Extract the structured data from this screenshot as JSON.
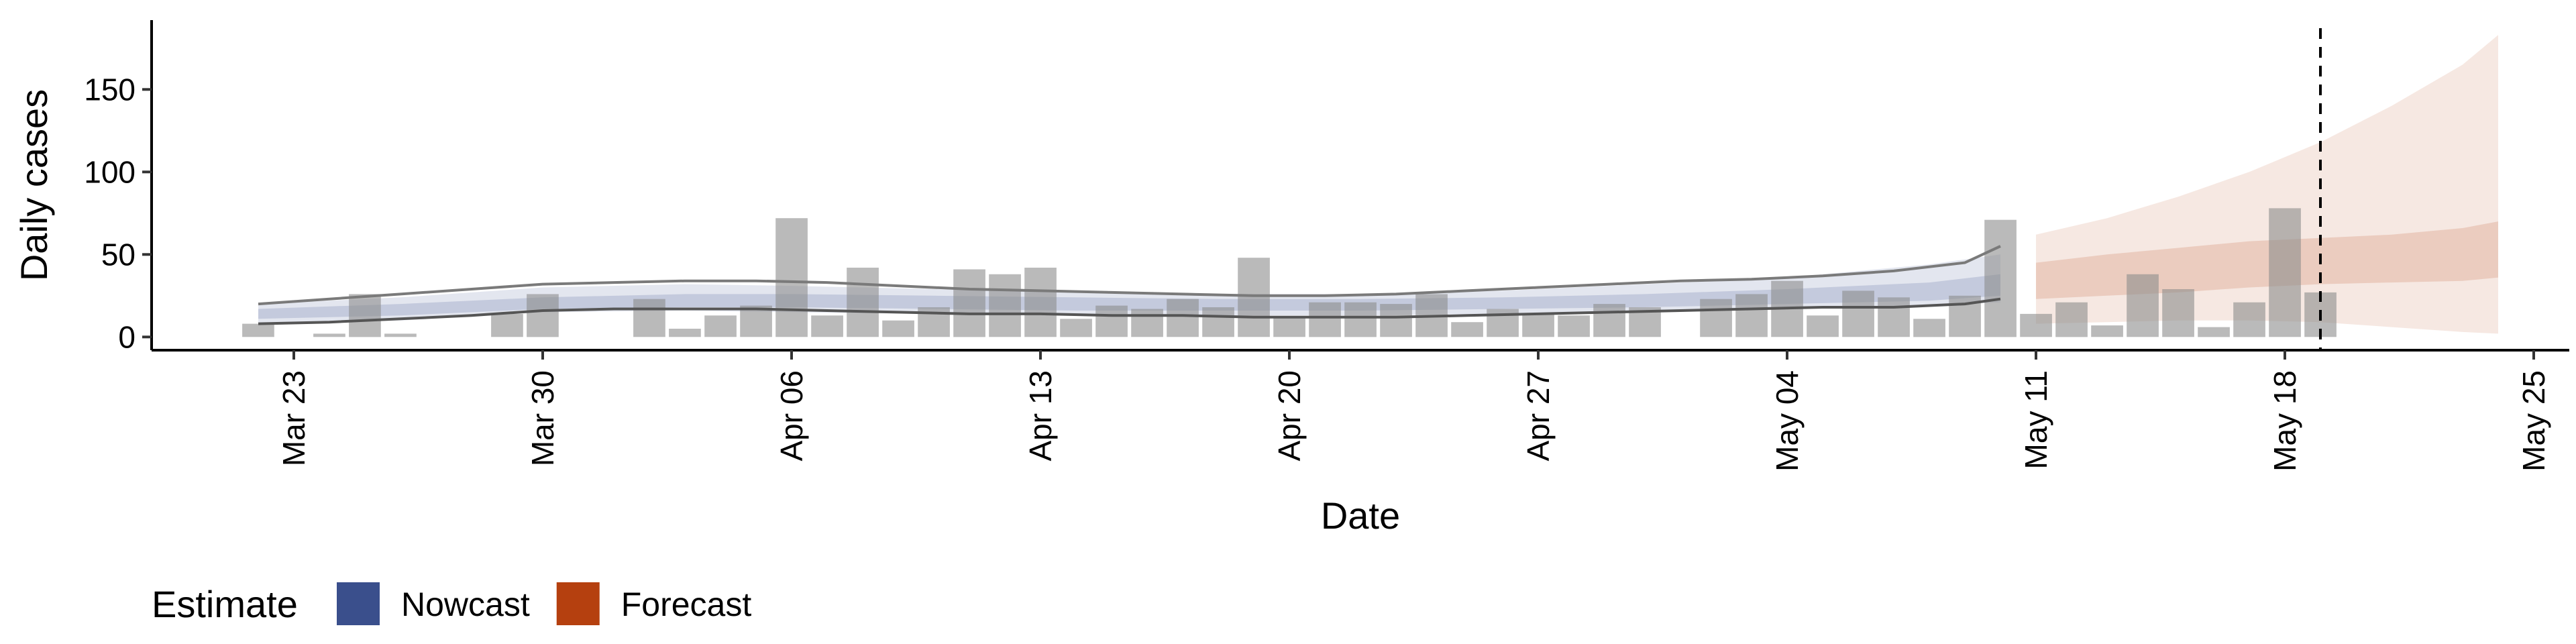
{
  "chart_data": {
    "type": "bar",
    "xlabel": "Date",
    "ylabel": "Daily cases",
    "ylim": [
      -8,
      192
    ],
    "xlim": [
      "2020-03-19",
      "2020-05-26"
    ],
    "y_ticks": [
      0,
      50,
      100,
      150
    ],
    "x_ticks": [
      {
        "date": "2020-03-23",
        "label": "Mar 23"
      },
      {
        "date": "2020-03-30",
        "label": "Mar 30"
      },
      {
        "date": "2020-04-06",
        "label": "Apr 06"
      },
      {
        "date": "2020-04-13",
        "label": "Apr 13"
      },
      {
        "date": "2020-04-20",
        "label": "Apr 20"
      },
      {
        "date": "2020-04-27",
        "label": "Apr 27"
      },
      {
        "date": "2020-05-04",
        "label": "May 04"
      },
      {
        "date": "2020-05-11",
        "label": "May 11"
      },
      {
        "date": "2020-05-18",
        "label": "May 18"
      },
      {
        "date": "2020-05-25",
        "label": "May 25"
      }
    ],
    "grid": false,
    "vline_date": "2020-05-19",
    "reported_cases": {
      "dates": [
        "2020-03-22",
        "2020-03-23",
        "2020-03-24",
        "2020-03-25",
        "2020-03-26",
        "2020-03-27",
        "2020-03-28",
        "2020-03-29",
        "2020-03-30",
        "2020-03-31",
        "2020-04-01",
        "2020-04-02",
        "2020-04-03",
        "2020-04-04",
        "2020-04-05",
        "2020-04-06",
        "2020-04-07",
        "2020-04-08",
        "2020-04-09",
        "2020-04-10",
        "2020-04-11",
        "2020-04-12",
        "2020-04-13",
        "2020-04-14",
        "2020-04-15",
        "2020-04-16",
        "2020-04-17",
        "2020-04-18",
        "2020-04-19",
        "2020-04-20",
        "2020-04-21",
        "2020-04-22",
        "2020-04-23",
        "2020-04-24",
        "2020-04-25",
        "2020-04-26",
        "2020-04-27",
        "2020-04-28",
        "2020-04-29",
        "2020-04-30",
        "2020-05-01",
        "2020-05-02",
        "2020-05-03",
        "2020-05-04",
        "2020-05-05",
        "2020-05-06",
        "2020-05-07",
        "2020-05-08",
        "2020-05-09",
        "2020-05-10",
        "2020-05-11",
        "2020-05-12",
        "2020-05-13",
        "2020-05-14",
        "2020-05-15",
        "2020-05-16",
        "2020-05-17",
        "2020-05-18",
        "2020-05-19"
      ],
      "values": [
        8,
        0,
        2,
        26,
        2,
        0,
        0,
        14,
        26,
        0,
        0,
        23,
        5,
        13,
        19,
        72,
        13,
        42,
        10,
        18,
        41,
        38,
        42,
        11,
        19,
        17,
        23,
        18,
        48,
        12,
        21,
        21,
        20,
        26,
        9,
        17,
        14,
        13,
        20,
        18,
        0,
        23,
        26,
        34,
        13,
        28,
        24,
        11,
        25,
        71,
        14,
        21,
        7,
        38,
        29,
        6,
        21,
        78,
        27
      ]
    },
    "series": [
      {
        "name": "Nowcast",
        "color": "#3a4f8c",
        "dates": [
          "2020-03-22",
          "2020-03-26",
          "2020-03-30",
          "2020-04-03",
          "2020-04-06",
          "2020-04-10",
          "2020-04-14",
          "2020-04-18",
          "2020-04-22",
          "2020-04-26",
          "2020-04-30",
          "2020-05-04",
          "2020-05-08",
          "2020-05-10"
        ],
        "median": [
          14,
          16,
          20,
          22,
          22,
          21,
          20,
          19,
          19,
          20,
          21,
          24,
          28,
          32
        ],
        "inner_lower": [
          11,
          13,
          17,
          18,
          18,
          17,
          16,
          16,
          16,
          17,
          18,
          20,
          22,
          25
        ],
        "inner_upper": [
          17,
          20,
          24,
          26,
          26,
          25,
          24,
          23,
          23,
          24,
          26,
          29,
          33,
          38
        ],
        "outer_lower": [
          8,
          10,
          15,
          16,
          15,
          14,
          13,
          13,
          13,
          14,
          15,
          17,
          19,
          21
        ],
        "outer_upper": [
          20,
          24,
          30,
          32,
          31,
          29,
          27,
          26,
          26,
          28,
          32,
          36,
          44,
          50
        ]
      },
      {
        "name": "Forecast",
        "color": "#b5400f",
        "dates": [
          "2020-05-11",
          "2020-05-13",
          "2020-05-15",
          "2020-05-17",
          "2020-05-19",
          "2020-05-21",
          "2020-05-23",
          "2020-05-24"
        ],
        "median": [
          34,
          38,
          41,
          44,
          46,
          48,
          52,
          54
        ],
        "inner_lower": [
          23,
          25,
          27,
          30,
          32,
          33,
          34,
          36
        ],
        "inner_upper": [
          45,
          50,
          54,
          58,
          60,
          62,
          66,
          70
        ],
        "outer_lower": [
          8,
          9,
          10,
          10,
          9,
          6,
          3,
          2
        ],
        "outer_upper": [
          62,
          72,
          85,
          100,
          118,
          140,
          165,
          183
        ]
      }
    ],
    "observed_lines": {
      "dates": [
        "2020-03-22",
        "2020-03-24",
        "2020-03-26",
        "2020-03-28",
        "2020-03-30",
        "2020-04-01",
        "2020-04-03",
        "2020-04-05",
        "2020-04-07",
        "2020-04-09",
        "2020-04-11",
        "2020-04-13",
        "2020-04-15",
        "2020-04-17",
        "2020-04-19",
        "2020-04-21",
        "2020-04-23",
        "2020-04-25",
        "2020-04-27",
        "2020-04-29",
        "2020-05-01",
        "2020-05-03",
        "2020-05-05",
        "2020-05-07",
        "2020-05-09",
        "2020-05-10"
      ],
      "lower": [
        8,
        9,
        11,
        13,
        16,
        17,
        17,
        17,
        16,
        15,
        14,
        14,
        13,
        13,
        12,
        12,
        12,
        13,
        14,
        15,
        16,
        17,
        18,
        18,
        20,
        23
      ],
      "upper": [
        20,
        23,
        26,
        29,
        32,
        33,
        34,
        34,
        33,
        31,
        29,
        28,
        27,
        26,
        25,
        25,
        26,
        28,
        30,
        32,
        34,
        35,
        37,
        40,
        45,
        55
      ]
    },
    "legend": {
      "title": "Estimate",
      "position": "bottom-left",
      "entries": [
        {
          "label": "Nowcast",
          "color": "#3a4f8c"
        },
        {
          "label": "Forecast",
          "color": "#b5400f"
        }
      ]
    }
  }
}
